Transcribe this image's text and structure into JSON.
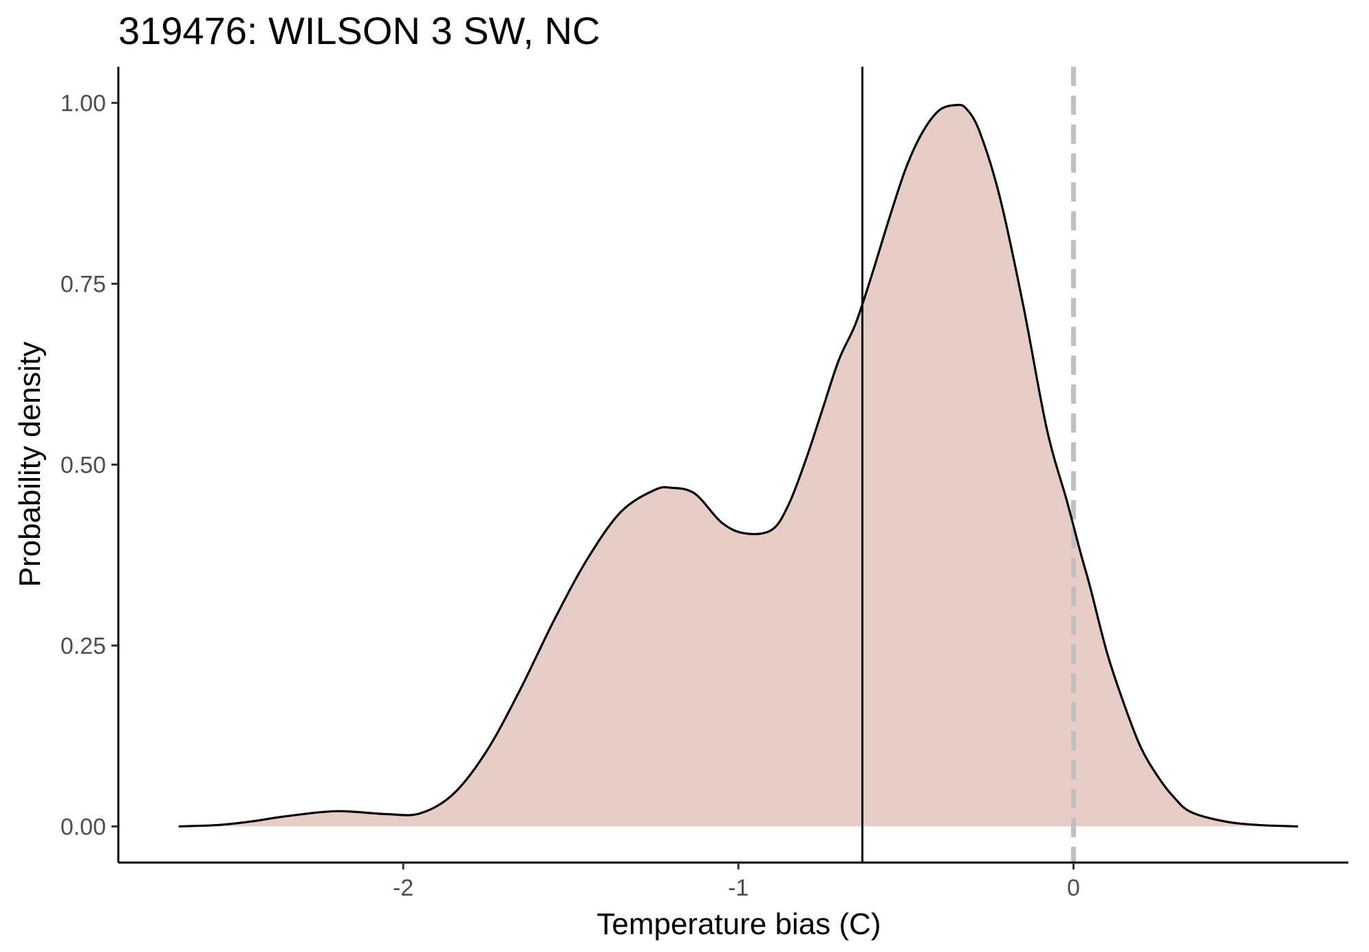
{
  "chart_data": {
    "type": "area",
    "title": "319476: WILSON 3 SW, NC",
    "xlabel": "Temperature bias (C)",
    "ylabel": "Probability density",
    "xlim": [
      -2.85,
      0.82
    ],
    "ylim": [
      -0.05,
      1.05
    ],
    "x_ticks": [
      -2,
      -1,
      0
    ],
    "x_tick_labels": [
      "-2",
      "-1",
      "0"
    ],
    "y_ticks": [
      0,
      0.25,
      0.5,
      0.75,
      1.0
    ],
    "y_tick_labels": [
      "0.00",
      "0.25",
      "0.50",
      "0.75",
      "1.00"
    ],
    "grid": false,
    "fill_color": "#e6cdc6",
    "line_color": "#000000",
    "reference_lines": [
      {
        "x": -0.63,
        "style": "solid",
        "color": "#000000"
      },
      {
        "x": 0.0,
        "style": "dashed",
        "color": "#bfbfbf"
      }
    ],
    "series": [
      {
        "x": [
          -2.67,
          -2.55,
          -2.45,
          -2.35,
          -2.2,
          -2.05,
          -1.95,
          -1.85,
          -1.75,
          -1.65,
          -1.55,
          -1.45,
          -1.35,
          -1.25,
          -1.2,
          -1.13,
          -1.05,
          -0.98,
          -0.9,
          -0.85,
          -0.8,
          -0.75,
          -0.7,
          -0.65,
          -0.6,
          -0.55,
          -0.5,
          -0.45,
          -0.4,
          -0.35,
          -0.32,
          -0.28,
          -0.22,
          -0.15,
          -0.08,
          -0.02,
          0.02,
          0.05,
          0.1,
          0.15,
          0.2,
          0.25,
          0.3,
          0.35,
          0.45,
          0.55,
          0.67
        ],
        "y": [
          0.0,
          0.002,
          0.007,
          0.014,
          0.021,
          0.017,
          0.018,
          0.045,
          0.105,
          0.19,
          0.285,
          0.37,
          0.435,
          0.465,
          0.468,
          0.46,
          0.42,
          0.405,
          0.41,
          0.445,
          0.505,
          0.575,
          0.645,
          0.695,
          0.765,
          0.84,
          0.91,
          0.96,
          0.99,
          0.997,
          0.992,
          0.96,
          0.87,
          0.72,
          0.55,
          0.45,
          0.38,
          0.33,
          0.24,
          0.17,
          0.11,
          0.07,
          0.04,
          0.02,
          0.007,
          0.002,
          0.0
        ]
      }
    ]
  }
}
